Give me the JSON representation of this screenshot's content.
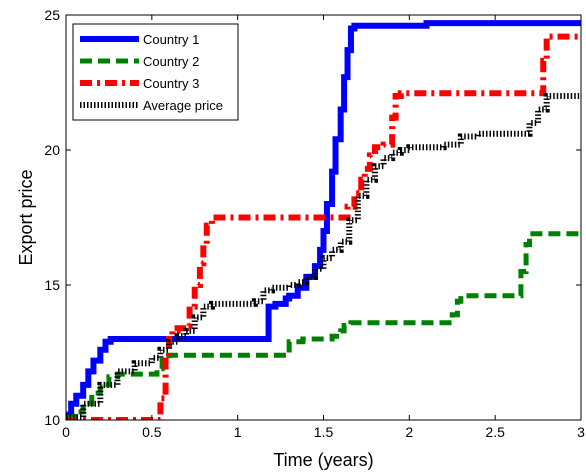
{
  "chart_data": {
    "type": "line",
    "title": "",
    "xlabel": "Time (years)",
    "ylabel": "Export price",
    "xlim": [
      0,
      3
    ],
    "ylim": [
      10,
      25
    ],
    "xticks": [
      {
        "value": 0,
        "label": "0"
      },
      {
        "value": 0.5,
        "label": "0.5"
      },
      {
        "value": 1,
        "label": "1"
      },
      {
        "value": 1.5,
        "label": "1.5"
      },
      {
        "value": 2,
        "label": "2"
      },
      {
        "value": 2.5,
        "label": "2.5"
      },
      {
        "value": 3,
        "label": "3"
      }
    ],
    "yticks": [
      {
        "value": 10,
        "label": "10"
      },
      {
        "value": 15,
        "label": "15"
      },
      {
        "value": 20,
        "label": "20"
      },
      {
        "value": 25,
        "label": "25"
      }
    ],
    "grid": false,
    "legend_position": "top-left",
    "series": [
      {
        "name": "Country 1",
        "color": "#0000ff",
        "style": "solid",
        "x": [
          0,
          0.03,
          0.06,
          0.1,
          0.13,
          0.16,
          0.2,
          0.23,
          0.26,
          0.35,
          0.5,
          0.7,
          0.9,
          1.0,
          1.1,
          1.15,
          1.18,
          1.22,
          1.28,
          1.3,
          1.35,
          1.4,
          1.45,
          1.48,
          1.5,
          1.52,
          1.55,
          1.57,
          1.6,
          1.62,
          1.64,
          1.66,
          1.68,
          2.0,
          2.1,
          2.5,
          3.0
        ],
        "y": [
          10.2,
          10.6,
          10.9,
          11.3,
          11.8,
          12.2,
          12.6,
          12.9,
          13.0,
          13.0,
          13.0,
          13.0,
          13.0,
          13.0,
          13.0,
          13.0,
          14.2,
          14.3,
          14.5,
          14.6,
          14.9,
          15.3,
          15.7,
          16.3,
          17.0,
          18.0,
          19.2,
          20.4,
          21.5,
          22.7,
          23.7,
          24.5,
          24.6,
          24.6,
          24.7,
          24.7,
          24.7
        ]
      },
      {
        "name": "Country 2",
        "color": "#008000",
        "style": "dashed",
        "x": [
          0,
          0.05,
          0.1,
          0.15,
          0.2,
          0.25,
          0.3,
          0.45,
          0.5,
          0.53,
          0.56,
          0.6,
          0.65,
          1.0,
          1.2,
          1.28,
          1.3,
          1.33,
          1.38,
          1.55,
          1.6,
          1.62,
          1.66,
          2.0,
          2.2,
          2.25,
          2.28,
          2.3,
          2.45,
          2.6,
          2.65,
          2.68,
          2.7,
          3.0
        ],
        "y": [
          10.1,
          10.3,
          10.6,
          11.0,
          11.3,
          11.6,
          11.7,
          11.7,
          11.7,
          11.9,
          12.2,
          12.4,
          12.4,
          12.4,
          12.4,
          12.4,
          12.9,
          12.9,
          13.0,
          13.1,
          13.3,
          13.5,
          13.6,
          13.6,
          13.6,
          13.9,
          14.4,
          14.6,
          14.6,
          14.6,
          15.5,
          16.5,
          16.9,
          16.9
        ]
      },
      {
        "name": "Country 3",
        "color": "#ff0000",
        "style": "dash-dot",
        "x": [
          0,
          0.2,
          0.4,
          0.52,
          0.55,
          0.58,
          0.6,
          0.62,
          0.65,
          0.7,
          0.72,
          0.75,
          0.78,
          0.8,
          0.82,
          0.85,
          1.0,
          1.2,
          1.4,
          1.6,
          1.64,
          1.68,
          1.72,
          1.74,
          1.77,
          1.8,
          1.85,
          1.88,
          1.9,
          1.92,
          1.95,
          2.2,
          2.5,
          2.75,
          2.78,
          2.8,
          3.0
        ],
        "y": [
          10.0,
          10.0,
          10.0,
          10.0,
          10.8,
          12.2,
          13.0,
          13.3,
          13.4,
          13.5,
          14.2,
          15.0,
          15.8,
          16.5,
          17.2,
          17.5,
          17.5,
          17.5,
          17.5,
          17.5,
          17.9,
          18.4,
          18.9,
          19.3,
          19.8,
          20.1,
          20.2,
          20.2,
          21.2,
          22.0,
          22.1,
          22.1,
          22.1,
          22.1,
          23.3,
          24.2,
          24.2
        ]
      },
      {
        "name": "Average price",
        "color": "#000000",
        "style": "dotted",
        "x": [
          0,
          0.1,
          0.2,
          0.3,
          0.4,
          0.5,
          0.55,
          0.6,
          0.65,
          0.7,
          0.75,
          0.8,
          0.85,
          1.0,
          1.1,
          1.15,
          1.2,
          1.3,
          1.35,
          1.4,
          1.45,
          1.5,
          1.55,
          1.6,
          1.65,
          1.7,
          1.75,
          1.8,
          1.85,
          1.9,
          1.95,
          2.0,
          2.2,
          2.3,
          2.4,
          2.6,
          2.7,
          2.75,
          2.8,
          3.0
        ],
        "y": [
          10.1,
          10.6,
          11.3,
          11.8,
          12.1,
          12.3,
          12.6,
          12.9,
          13.1,
          13.3,
          13.8,
          14.2,
          14.3,
          14.3,
          14.4,
          14.8,
          14.9,
          15.0,
          15.1,
          15.3,
          15.6,
          16.0,
          16.3,
          16.6,
          17.4,
          18.3,
          18.9,
          19.4,
          19.7,
          19.9,
          20.0,
          20.1,
          20.2,
          20.5,
          20.6,
          20.6,
          21.0,
          21.5,
          22.0,
          22.0
        ]
      }
    ]
  }
}
